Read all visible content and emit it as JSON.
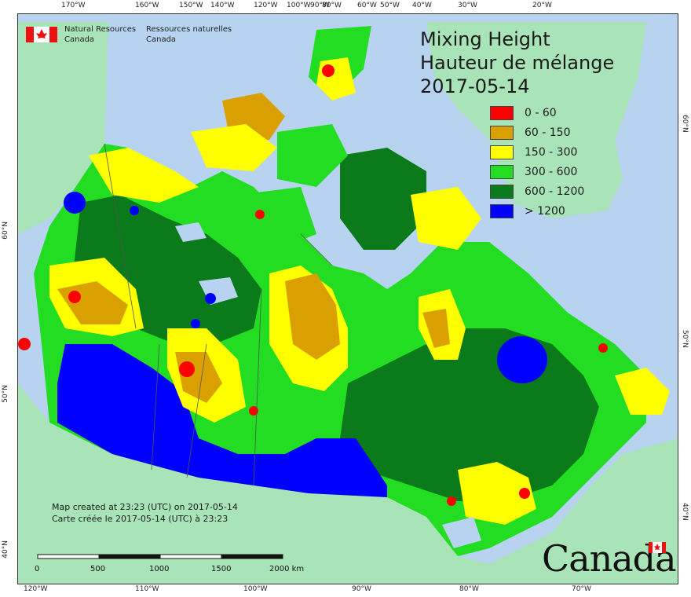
{
  "header": {
    "agency_en_line1": "Natural Resources",
    "agency_en_line2": "Canada",
    "agency_fr_line1": "Ressources naturelles",
    "agency_fr_line2": "Canada"
  },
  "title": {
    "line1": "Mixing Height",
    "line2": "Hauteur de mélange",
    "date": "2017-05-14"
  },
  "legend": {
    "items": [
      {
        "label": "0 - 60",
        "color": "#ff0000"
      },
      {
        "label": "60 - 150",
        "color": "#daa000"
      },
      {
        "label": "150 - 300",
        "color": "#ffff00"
      },
      {
        "label": "300 - 600",
        "color": "#22dd22"
      },
      {
        "label": "600 - 1200",
        "color": "#0a7a1a"
      },
      {
        "label": "> 1200",
        "color": "#0000ff"
      }
    ]
  },
  "graticule": {
    "top": [
      "170°W",
      "160°W",
      "150°W",
      "140°W",
      "120°W",
      "100°W",
      "90°W",
      "80°W",
      "60°W",
      "50°W",
      "40°W",
      "30°W",
      "20°W"
    ],
    "bottom": [
      "120°W",
      "110°W",
      "100°W",
      "90°W",
      "80°W",
      "70°W"
    ],
    "left": [
      "60°N",
      "50°N",
      "40°N"
    ],
    "right": [
      "60°N",
      "50°N",
      "40°N"
    ]
  },
  "footnote": {
    "en": "Map created at 23:23 (UTC) on 2017-05-14",
    "fr": "Carte créée le 2017-05-14 (UTC) à 23:23"
  },
  "scalebar": {
    "labels": [
      "0",
      "500",
      "1000",
      "1500",
      "2000  km"
    ]
  },
  "wordmark": "Canada",
  "colors": {
    "ocean": "#b7d3ef",
    "land_outside": "#a8e4b8"
  }
}
